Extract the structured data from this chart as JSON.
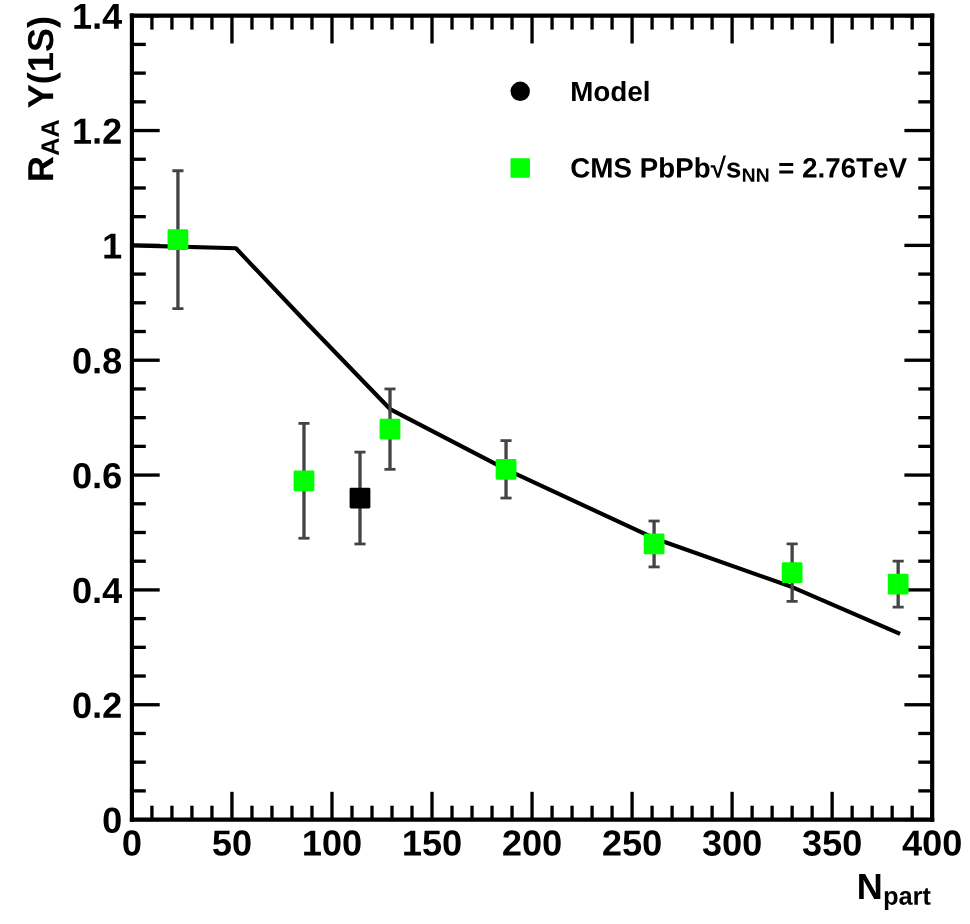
{
  "chart_data": {
    "type": "scatter",
    "xlabel": "N$_{part}$",
    "ylabel": "R$_{AA}$ Υ(1S)",
    "xlim": [
      0,
      400
    ],
    "ylim": [
      0,
      1.4
    ],
    "xticks": [
      0,
      50,
      100,
      150,
      200,
      250,
      300,
      350,
      400
    ],
    "yticks": [
      0,
      0.2,
      0.4,
      0.6,
      0.8,
      1,
      1.2,
      1.4
    ],
    "grid": false,
    "legend": "top right",
    "series": [
      {
        "name": "Model",
        "type": "line",
        "marker": "none",
        "color": "#000000",
        "x": [
          0,
          52,
          86,
          129,
          187,
          261,
          330,
          383
        ],
        "values": [
          1.0,
          0.995,
          0.87,
          0.715,
          0.61,
          0.49,
          0.405,
          0.325
        ]
      },
      {
        "name": "CMS PbPb√s$_{NN}$ = 2.76TeV",
        "marker": "square",
        "color": "#00ff00",
        "x": [
          23,
          86,
          129,
          187,
          261,
          330,
          383
        ],
        "values": [
          1.01,
          0.59,
          0.68,
          0.61,
          0.48,
          0.43,
          0.41
        ],
        "errors": [
          [
            0.89,
            1.13
          ],
          [
            0.49,
            0.69
          ],
          [
            0.61,
            0.75
          ],
          [
            0.56,
            0.66
          ],
          [
            0.44,
            0.52
          ],
          [
            0.38,
            0.48
          ],
          [
            0.37,
            0.45
          ]
        ]
      },
      {
        "marker": "square",
        "color": "#000000",
        "x": [
          114
        ],
        "values": [
          0.56
        ],
        "errors": [
          [
            0.48,
            0.64
          ]
        ]
      }
    ]
  }
}
